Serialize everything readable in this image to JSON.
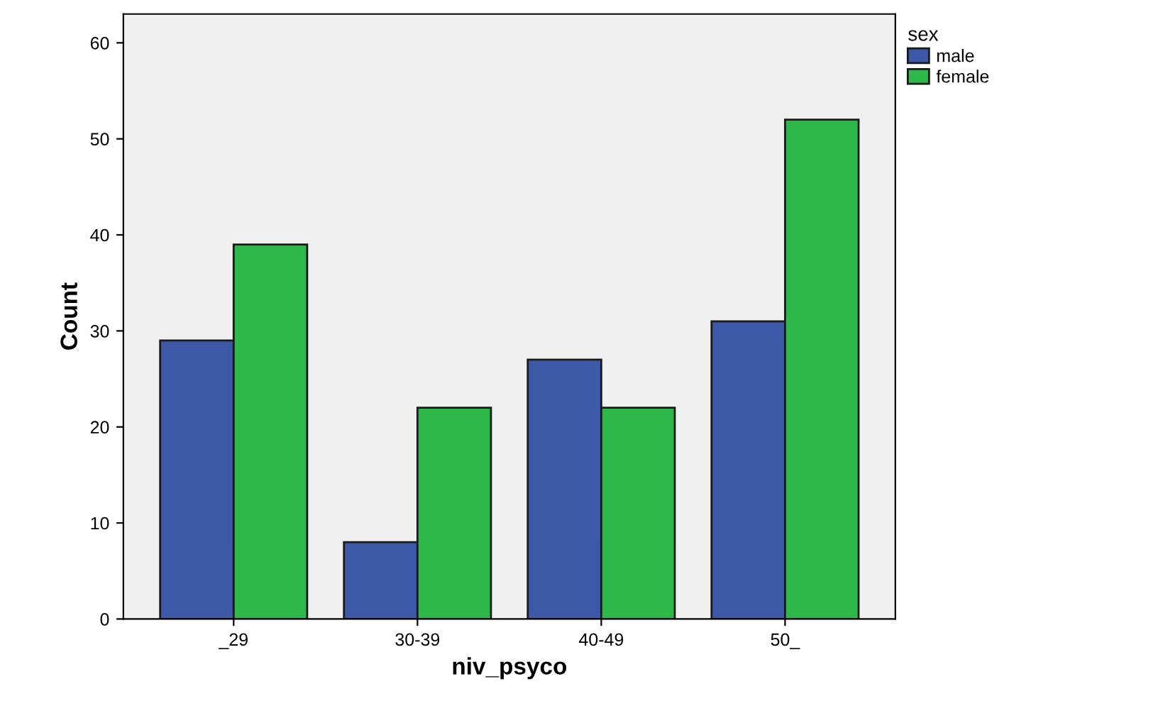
{
  "chart_data": {
    "type": "bar",
    "xlabel": "niv_psyco",
    "ylabel": "Count",
    "legend_title": "sex",
    "categories": [
      "_29",
      "30-39",
      "40-49",
      "50_"
    ],
    "series": [
      {
        "name": "male",
        "color": "#3e58a8",
        "values": [
          29,
          8,
          27,
          31
        ]
      },
      {
        "name": "female",
        "color": "#2eb84a",
        "values": [
          39,
          22,
          22,
          52
        ]
      }
    ],
    "ylim": [
      0,
      63
    ],
    "yticks": [
      0,
      10,
      20,
      30,
      40,
      50,
      60
    ],
    "grid": false,
    "legend": "top right"
  }
}
